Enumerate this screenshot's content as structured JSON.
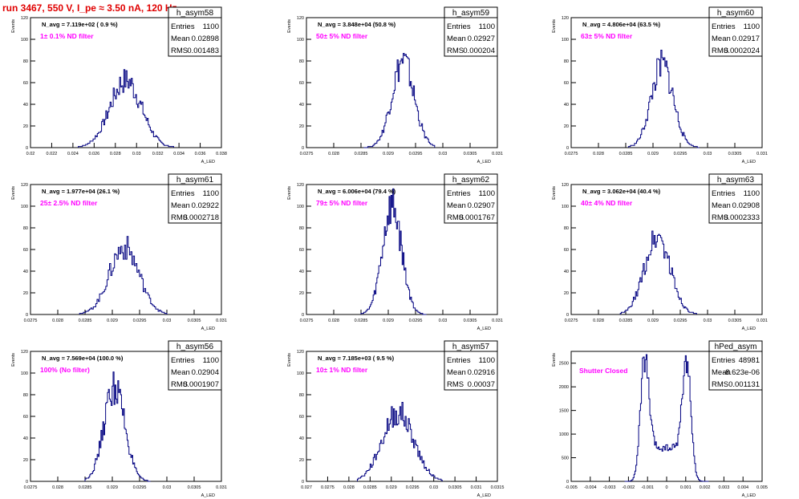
{
  "page": {
    "run_title": "run 3467,   550 V, I_pe ≈ 3.50 nA, 120 Hz"
  },
  "style": {
    "line_color": "#000080",
    "label_color": "#ff00ff",
    "title_color": "#e00000",
    "axis_color": "#000000"
  },
  "chart_data": [
    {
      "type": "histogram",
      "name": "h_asym58",
      "stats": {
        "entries": "1100",
        "mean": "0.02898",
        "rms": "0.001483"
      },
      "navg": "N_avg = 7.119e+02 ( 0.9 %)",
      "filter": "1± 0.1% ND filter",
      "xlim": [
        0.02,
        0.038
      ],
      "ylim": [
        0,
        120
      ],
      "xticks": [
        "0.02",
        "0.022",
        "0.024",
        "0.026",
        "0.028",
        "0.03",
        "0.032",
        "0.034",
        "0.036",
        "0.038"
      ],
      "yticks": [
        "0",
        "20",
        "40",
        "60",
        "80",
        "100",
        "120"
      ],
      "xlabel": "A_LED",
      "ylabel": "Events",
      "profile": {
        "type": "gauss",
        "mean": 0.02898,
        "rms": 0.001483,
        "peak": 62,
        "bins": 90,
        "lo": 0.0245,
        "hi": 0.0335
      }
    },
    {
      "type": "histogram",
      "name": "h_asym59",
      "stats": {
        "entries": "1100",
        "mean": "0.02927",
        "rms": "0.000204"
      },
      "navg": "N_avg = 3.848e+04 (50.8 %)",
      "filter": "50± 5% ND filter",
      "xlim": [
        0.0275,
        0.031
      ],
      "ylim": [
        0,
        120
      ],
      "xticks": [
        "0.0275",
        "0.028",
        "0.0285",
        "0.029",
        "0.0295",
        "0.03",
        "0.0305",
        "0.031"
      ],
      "yticks": [
        "0",
        "20",
        "40",
        "60",
        "80",
        "100",
        "120"
      ],
      "xlabel": "A_LED",
      "ylabel": "Events",
      "profile": {
        "type": "gauss",
        "mean": 0.02927,
        "rms": 0.000204,
        "peak": 80,
        "bins": 70,
        "lo": 0.02855,
        "hi": 0.02985
      }
    },
    {
      "type": "histogram",
      "name": "h_asym60",
      "stats": {
        "entries": "1100",
        "mean": "0.02917",
        "rms": "0.0002024"
      },
      "navg": "N_avg = 4.806e+04 (63.5 %)",
      "filter": "63± 5% ND filter",
      "xlim": [
        0.0275,
        0.031
      ],
      "ylim": [
        0,
        120
      ],
      "xticks": [
        "0.0275",
        "0.028",
        "0.0285",
        "0.029",
        "0.0295",
        "0.03",
        "0.0305",
        "0.031"
      ],
      "yticks": [
        "0",
        "20",
        "40",
        "60",
        "80",
        "100",
        "120"
      ],
      "xlabel": "A_LED",
      "ylabel": "Events",
      "profile": {
        "type": "gauss",
        "mean": 0.02917,
        "rms": 0.0002024,
        "peak": 76,
        "bins": 70,
        "lo": 0.02855,
        "hi": 0.02985
      }
    },
    {
      "type": "histogram",
      "name": "h_asym61",
      "stats": {
        "entries": "1100",
        "mean": "0.02922",
        "rms": "0.0002718"
      },
      "navg": "N_avg = 1.977e+04 (26.1 %)",
      "filter": "25± 2.5% ND filter",
      "xlim": [
        0.0275,
        0.031
      ],
      "ylim": [
        0,
        120
      ],
      "xticks": [
        "0.0275",
        "0.028",
        "0.0285",
        "0.029",
        "0.0295",
        "0.03",
        "0.0305",
        "0.031"
      ],
      "yticks": [
        "0",
        "20",
        "40",
        "60",
        "80",
        "100",
        "120"
      ],
      "xlabel": "A_LED",
      "ylabel": "Events",
      "profile": {
        "type": "gauss",
        "mean": 0.02922,
        "rms": 0.0002718,
        "peak": 62,
        "bins": 70,
        "lo": 0.0284,
        "hi": 0.03
      }
    },
    {
      "type": "histogram",
      "name": "h_asym62",
      "stats": {
        "entries": "1100",
        "mean": "0.02907",
        "rms": "0.0001767"
      },
      "navg": "N_avg = 6.006e+04 (79.4 %)",
      "filter": "79± 5% ND filter",
      "xlim": [
        0.0275,
        0.031
      ],
      "ylim": [
        0,
        120
      ],
      "xticks": [
        "0.0275",
        "0.028",
        "0.0285",
        "0.029",
        "0.0295",
        "0.03",
        "0.0305",
        "0.031"
      ],
      "yticks": [
        "0",
        "20",
        "40",
        "60",
        "80",
        "100",
        "120"
      ],
      "xlabel": "A_LED",
      "ylabel": "Events",
      "profile": {
        "type": "gauss",
        "mean": 0.02907,
        "rms": 0.0001767,
        "peak": 100,
        "bins": 70,
        "lo": 0.0285,
        "hi": 0.0297
      }
    },
    {
      "type": "histogram",
      "name": "h_asym63",
      "stats": {
        "entries": "1100",
        "mean": "0.02908",
        "rms": "0.0002333"
      },
      "navg": "N_avg = 3.062e+04 (40.4 %)",
      "filter": "40± 4% ND filter",
      "xlim": [
        0.0275,
        0.031
      ],
      "ylim": [
        0,
        120
      ],
      "xticks": [
        "0.0275",
        "0.028",
        "0.0285",
        "0.029",
        "0.0295",
        "0.03",
        "0.0305",
        "0.031"
      ],
      "yticks": [
        "0",
        "20",
        "40",
        "60",
        "80",
        "100",
        "120"
      ],
      "xlabel": "A_LED",
      "ylabel": "Events",
      "profile": {
        "type": "gauss",
        "mean": 0.02908,
        "rms": 0.0002333,
        "peak": 72,
        "bins": 70,
        "lo": 0.0284,
        "hi": 0.0298
      }
    },
    {
      "type": "histogram",
      "name": "h_asym56",
      "stats": {
        "entries": "1100",
        "mean": "0.02904",
        "rms": "0.0001907"
      },
      "navg": "N_avg = 7.569e+04 (100.0 %)",
      "filter": "100% (No filter)",
      "xlim": [
        0.0275,
        0.031
      ],
      "ylim": [
        0,
        120
      ],
      "xticks": [
        "0.0275",
        "0.028",
        "0.0285",
        "0.029",
        "0.0295",
        "0.03",
        "0.0305",
        "0.031"
      ],
      "yticks": [
        "0",
        "20",
        "40",
        "60",
        "80",
        "100",
        "120"
      ],
      "xlabel": "A_LED",
      "ylabel": "Events",
      "profile": {
        "type": "gauss",
        "mean": 0.02904,
        "rms": 0.0001907,
        "peak": 87,
        "bins": 70,
        "lo": 0.0285,
        "hi": 0.0297
      }
    },
    {
      "type": "histogram",
      "name": "h_asym57",
      "stats": {
        "entries": "1100",
        "mean": "0.02916",
        "rms": "0.00037"
      },
      "navg": "N_avg = 7.185e+03 ( 9.5 %)",
      "filter": "10± 1% ND filter",
      "xlim": [
        0.027,
        0.0315
      ],
      "ylim": [
        0,
        120
      ],
      "xticks": [
        "0.027",
        "0.0275",
        "0.028",
        "0.0285",
        "0.029",
        "0.0295",
        "0.03",
        "0.0305",
        "0.031",
        "0.0315"
      ],
      "yticks": [
        "0",
        "20",
        "40",
        "60",
        "80",
        "100",
        "120"
      ],
      "xlabel": "A_LED",
      "ylabel": "Events",
      "profile": {
        "type": "gauss",
        "mean": 0.02916,
        "rms": 0.00037,
        "peak": 63,
        "bins": 80,
        "lo": 0.0282,
        "hi": 0.0302
      }
    },
    {
      "type": "histogram",
      "name": "hPed_asym",
      "stats": {
        "entries": "48981",
        "mean": "-8.623e-06",
        "rms": "0.001131"
      },
      "navg": "",
      "filter": "Shutter Closed",
      "xlim": [
        -0.005,
        0.005
      ],
      "ylim": [
        0,
        2750
      ],
      "xticks": [
        "-0.005",
        "-0.004",
        "-0.003",
        "-0.002",
        "-0.001",
        "0",
        "0.001",
        "0.002",
        "0.003",
        "0.004",
        "0.005"
      ],
      "yticks": [
        "0",
        "500",
        "1000",
        "1500",
        "2000",
        "2500"
      ],
      "xlabel": "A_LED",
      "ylabel": "Events",
      "profile": {
        "type": "double",
        "m1": -0.00115,
        "m2": 0.00105,
        "s": 0.00022,
        "peak": 2600,
        "floor": 700,
        "bins": 90,
        "lo": -0.0022,
        "hi": 0.0022
      }
    }
  ]
}
